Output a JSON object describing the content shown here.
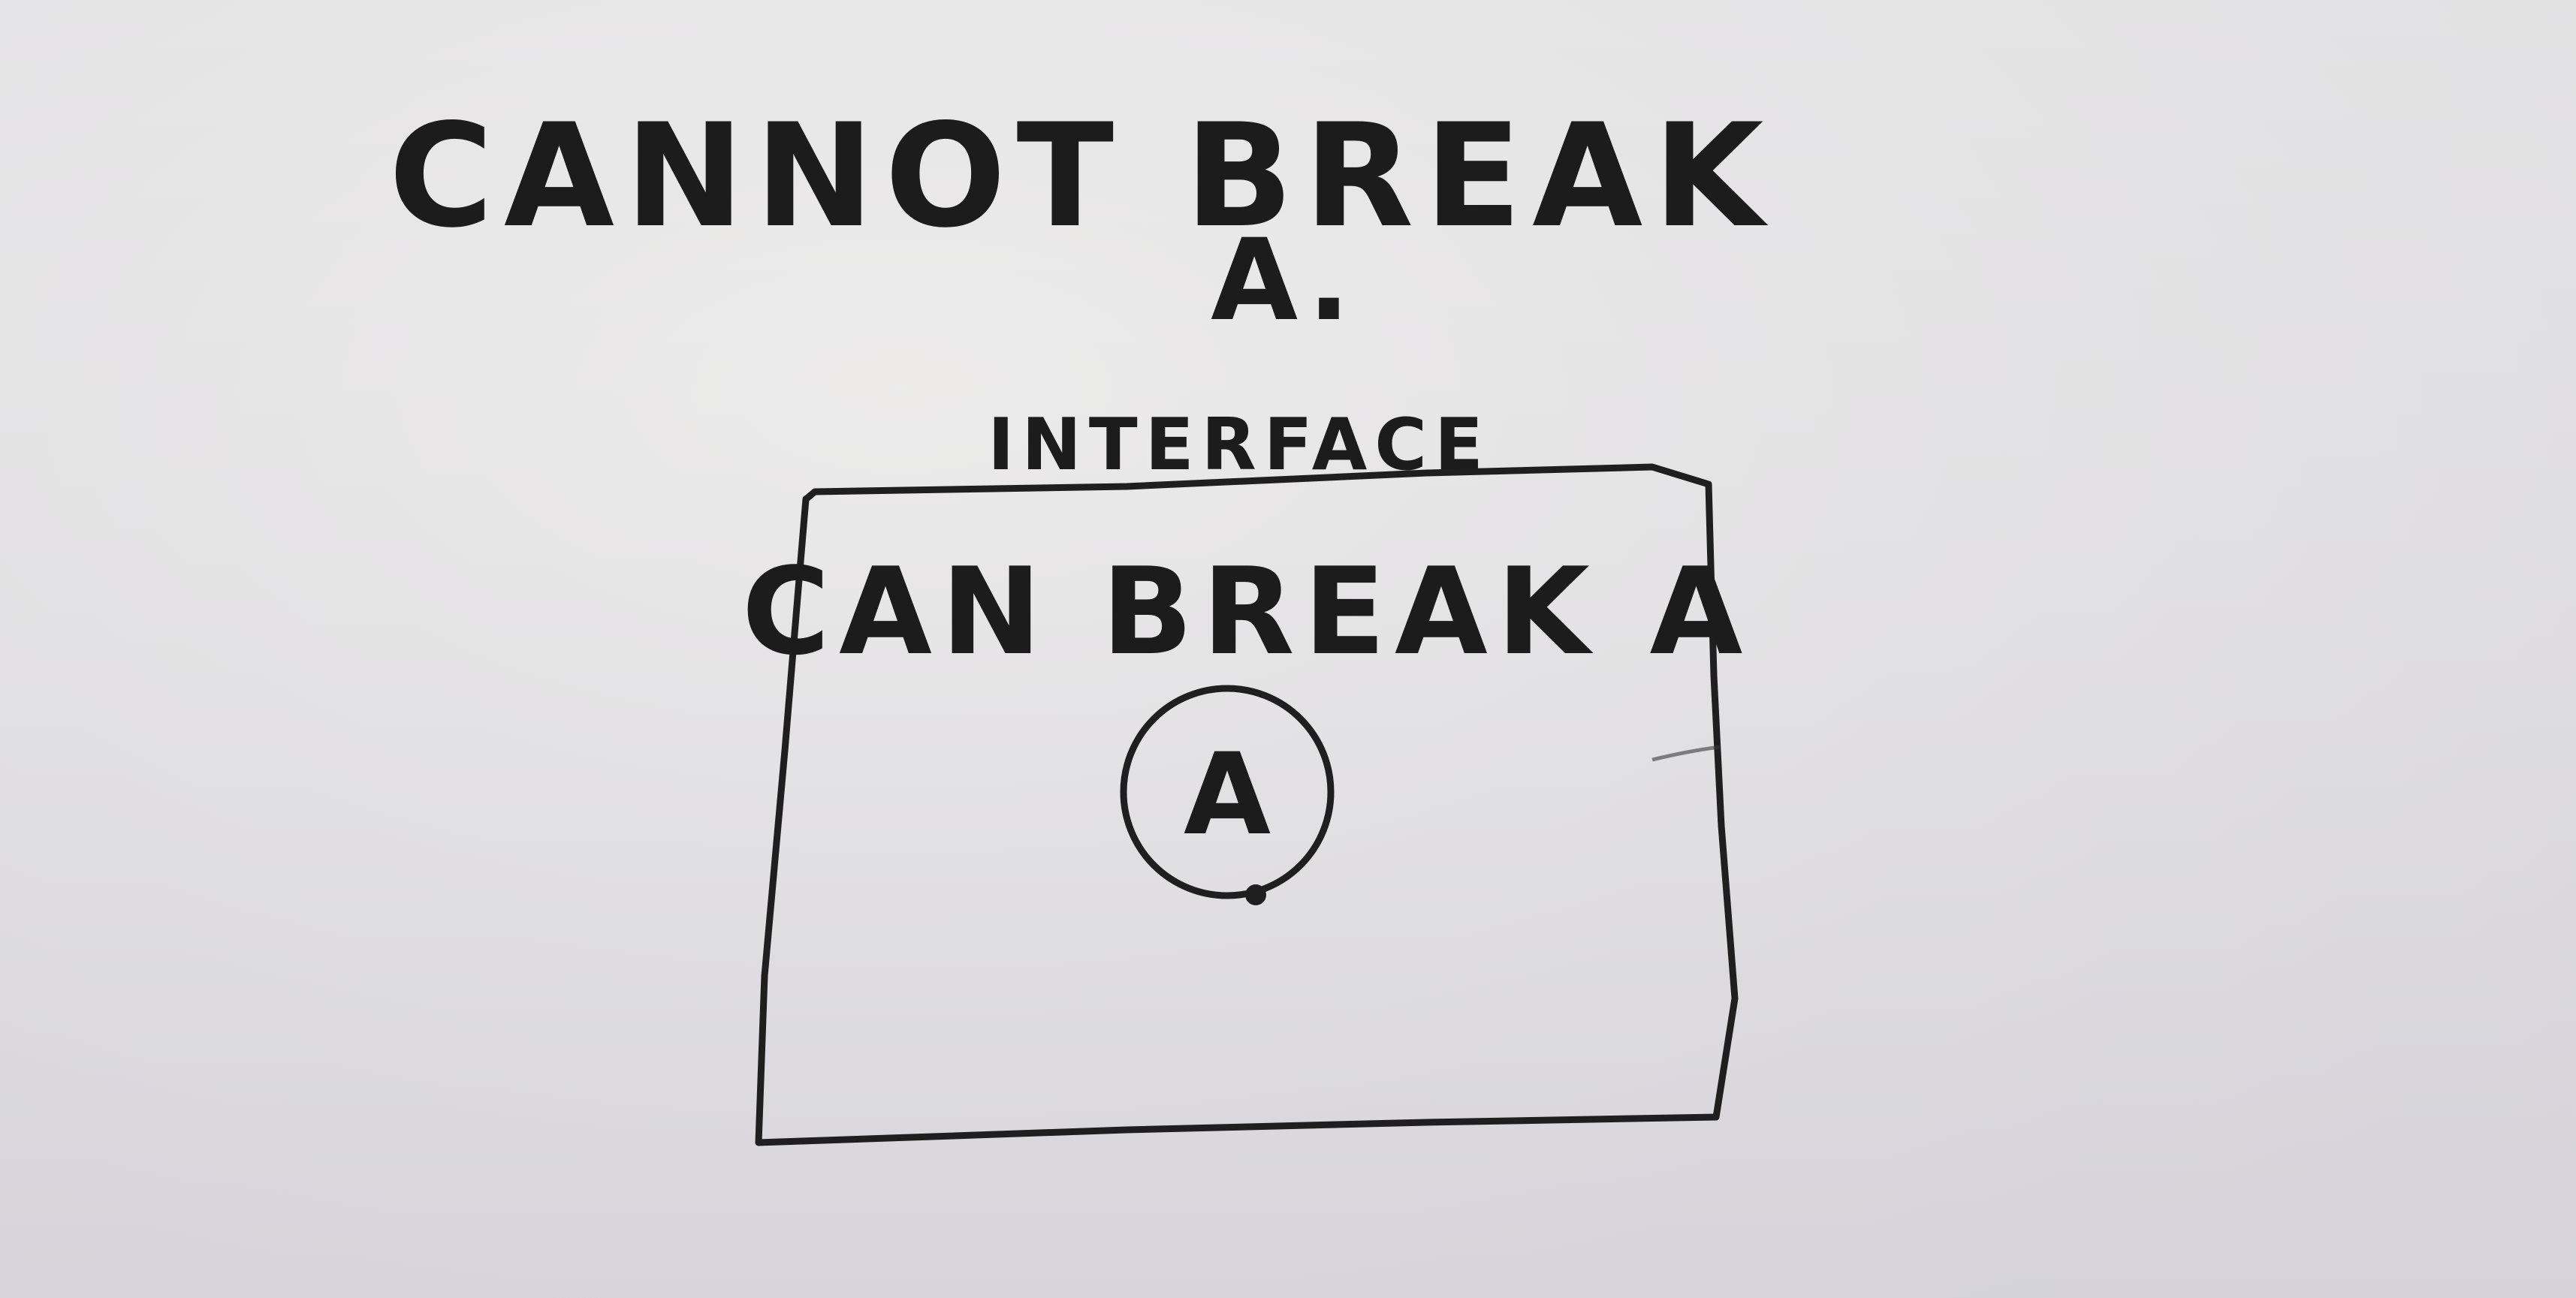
{
  "diagram": {
    "top_text": {
      "line1": "CANNOT BREAK",
      "line2": "A."
    },
    "interface_label": "INTERFACE",
    "box_text": "CAN BREAK A",
    "circle_label": "A"
  },
  "colors": {
    "ink": "#1c1c1c",
    "paper": "#e6e5e5"
  }
}
